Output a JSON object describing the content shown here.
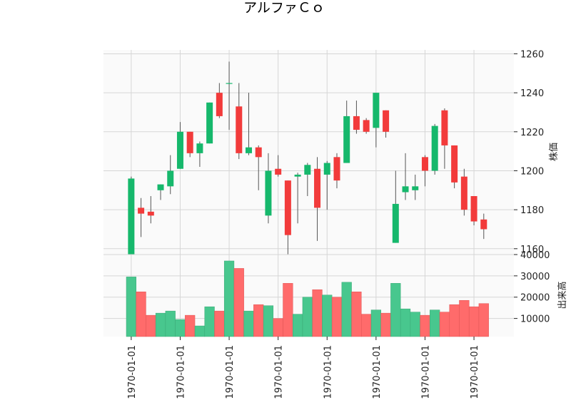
{
  "chart_data": {
    "type": "candlestick",
    "title": "アルファＣｏ",
    "price_ylabel": "株価",
    "volume_ylabel": "出来高",
    "price_ylim": [
      1157,
      1262
    ],
    "price_yticks": [
      1160,
      1180,
      1200,
      1220,
      1240,
      1260
    ],
    "volume_ylim": [
      1500,
      40000
    ],
    "volume_yticks": [
      10000,
      20000,
      30000,
      40000
    ],
    "xtick_labels": [
      "1970-01-01",
      "1970-01-01",
      "1970-01-01",
      "1970-01-01",
      "1970-01-01",
      "1970-01-01",
      "1970-01-01",
      "1970-01-01"
    ],
    "xtick_indices": [
      0,
      5,
      10,
      15,
      20,
      25,
      30,
      35
    ],
    "grid": true,
    "up_color": "#16b86c",
    "down_color": "#f23b3b",
    "candles": [
      {
        "o": 1156,
        "h": 1197,
        "l": 1153,
        "c": 1196,
        "v": 29500
      },
      {
        "o": 1181,
        "h": 1186,
        "l": 1166,
        "c": 1178,
        "v": 22500
      },
      {
        "o": 1179,
        "h": 1187,
        "l": 1173,
        "c": 1177,
        "v": 11500
      },
      {
        "o": 1190,
        "h": 1193,
        "l": 1185,
        "c": 1193,
        "v": 12500
      },
      {
        "o": 1192,
        "h": 1208,
        "l": 1188,
        "c": 1200,
        "v": 13500
      },
      {
        "o": 1201,
        "h": 1225,
        "l": 1201,
        "c": 1220,
        "v": 9500
      },
      {
        "o": 1220,
        "h": 1220,
        "l": 1207,
        "c": 1209,
        "v": 11500
      },
      {
        "o": 1209,
        "h": 1215,
        "l": 1202,
        "c": 1214,
        "v": 6500
      },
      {
        "o": 1214,
        "h": 1235,
        "l": 1214,
        "c": 1235,
        "v": 15500
      },
      {
        "o": 1240,
        "h": 1245,
        "l": 1227,
        "c": 1228,
        "v": 13500
      },
      {
        "o": 1245,
        "h": 1256,
        "l": 1221,
        "c": 1245,
        "v": 37000
      },
      {
        "o": 1233,
        "h": 1245,
        "l": 1206,
        "c": 1209,
        "v": 33500
      },
      {
        "o": 1209,
        "h": 1240,
        "l": 1208,
        "c": 1212,
        "v": 13500
      },
      {
        "o": 1212,
        "h": 1213,
        "l": 1190,
        "c": 1207,
        "v": 16500
      },
      {
        "o": 1177,
        "h": 1209,
        "l": 1173,
        "c": 1200,
        "v": 16000
      },
      {
        "o": 1201,
        "h": 1208,
        "l": 1197,
        "c": 1198,
        "v": 10000
      },
      {
        "o": 1195,
        "h": 1195,
        "l": 1157,
        "c": 1167,
        "v": 26500
      },
      {
        "o": 1197,
        "h": 1199,
        "l": 1173,
        "c": 1198,
        "v": 12000
      },
      {
        "o": 1198,
        "h": 1204,
        "l": 1187,
        "c": 1203,
        "v": 20000
      },
      {
        "o": 1201,
        "h": 1207,
        "l": 1164,
        "c": 1181,
        "v": 23500
      },
      {
        "o": 1198,
        "h": 1205,
        "l": 1180,
        "c": 1204,
        "v": 21000
      },
      {
        "o": 1207,
        "h": 1209,
        "l": 1191,
        "c": 1195,
        "v": 20000
      },
      {
        "o": 1204,
        "h": 1236,
        "l": 1204,
        "c": 1228,
        "v": 27000
      },
      {
        "o": 1228,
        "h": 1236,
        "l": 1219,
        "c": 1221,
        "v": 22500
      },
      {
        "o": 1226,
        "h": 1227,
        "l": 1219,
        "c": 1220,
        "v": 12000
      },
      {
        "o": 1222,
        "h": 1240,
        "l": 1212,
        "c": 1240,
        "v": 14000
      },
      {
        "o": 1231,
        "h": 1231,
        "l": 1217,
        "c": 1220,
        "v": 12500
      },
      {
        "o": 1163,
        "h": 1200,
        "l": 1163,
        "c": 1183,
        "v": 26500
      },
      {
        "o": 1189,
        "h": 1209,
        "l": 1185,
        "c": 1192,
        "v": 14500
      },
      {
        "o": 1190,
        "h": 1198,
        "l": 1185,
        "c": 1192,
        "v": 13000
      },
      {
        "o": 1207,
        "h": 1208,
        "l": 1192,
        "c": 1200,
        "v": 11500
      },
      {
        "o": 1200,
        "h": 1224,
        "l": 1198,
        "c": 1223,
        "v": 14000
      },
      {
        "o": 1231,
        "h": 1232,
        "l": 1201,
        "c": 1213,
        "v": 13000
      },
      {
        "o": 1213,
        "h": 1213,
        "l": 1191,
        "c": 1194,
        "v": 16500
      },
      {
        "o": 1197,
        "h": 1201,
        "l": 1177,
        "c": 1180,
        "v": 18500
      },
      {
        "o": 1187,
        "h": 1187,
        "l": 1172,
        "c": 1174,
        "v": 15500
      },
      {
        "o": 1175,
        "h": 1178,
        "l": 1165,
        "c": 1170,
        "v": 17000
      }
    ]
  }
}
